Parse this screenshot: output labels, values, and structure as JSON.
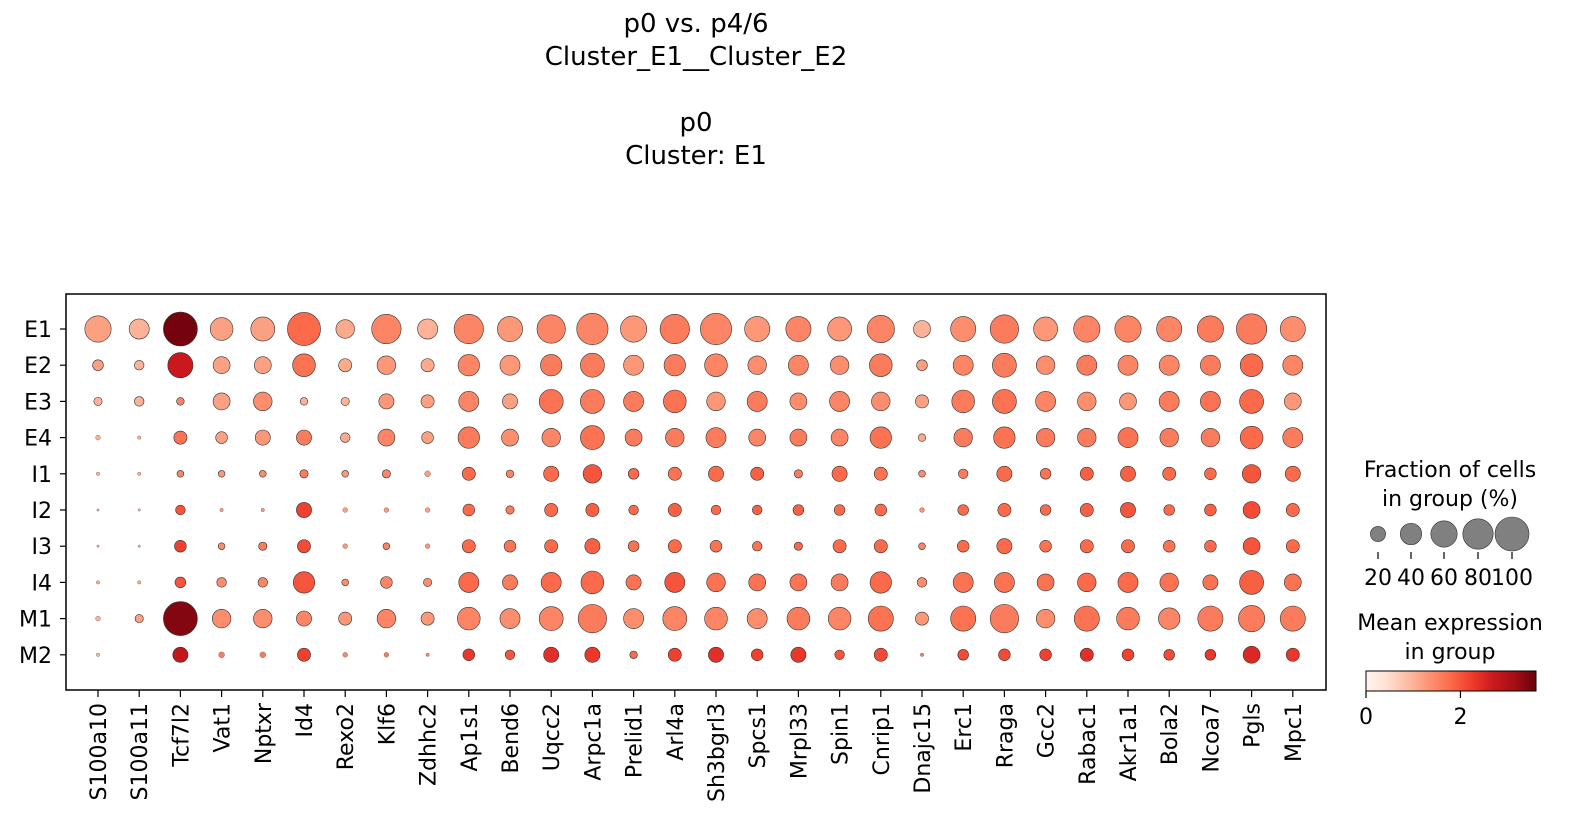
{
  "titles": {
    "line1": "p0 vs. p4/6",
    "line2": "Cluster_E1__Cluster_E2",
    "line3": "p0",
    "line4": "Cluster: E1"
  },
  "chart_data": {
    "type": "dotplot",
    "genes": [
      "S100a10",
      "S100a11",
      "Tcf7l2",
      "Vat1",
      "Nptxr",
      "Id4",
      "Rexo2",
      "Klf6",
      "Zdhhc2",
      "Ap1s1",
      "Bend6",
      "Uqcc2",
      "Arpc1a",
      "Prelid1",
      "Arl4a",
      "Sh3bgrl3",
      "Spcs1",
      "Mrpl33",
      "Spin1",
      "Cnrip1",
      "Dnajc15",
      "Erc1",
      "Rraga",
      "Gcc2",
      "Rabac1",
      "Akr1a1",
      "Bola2",
      "Ncoa7",
      "Pgls",
      "Mpc1"
    ],
    "groups": [
      "E1",
      "E2",
      "E3",
      "E4",
      "I1",
      "I2",
      "I3",
      "I4",
      "M1",
      "M2"
    ],
    "fraction_percent": [
      [
        60,
        35,
        100,
        45,
        50,
        95,
        30,
        75,
        35,
        75,
        55,
        70,
        85,
        60,
        75,
        85,
        55,
        55,
        50,
        65,
        25,
        55,
        70,
        50,
        60,
        60,
        55,
        60,
        80,
        55
      ],
      [
        10,
        8,
        55,
        25,
        25,
        45,
        15,
        30,
        15,
        40,
        35,
        40,
        50,
        35,
        40,
        45,
        30,
        35,
        30,
        45,
        10,
        35,
        50,
        30,
        35,
        35,
        35,
        35,
        45,
        35
      ],
      [
        6,
        8,
        5,
        25,
        30,
        5,
        6,
        20,
        15,
        35,
        20,
        50,
        50,
        35,
        45,
        30,
        35,
        25,
        35,
        30,
        15,
        45,
        50,
        35,
        30,
        25,
        35,
        35,
        50,
        25
      ],
      [
        2,
        1,
        15,
        12,
        20,
        20,
        8,
        25,
        12,
        40,
        25,
        30,
        50,
        25,
        30,
        35,
        25,
        25,
        25,
        40,
        5,
        30,
        40,
        30,
        30,
        35,
        30,
        30,
        45,
        35
      ],
      [
        1,
        1,
        4,
        4,
        4,
        6,
        4,
        6,
        3,
        15,
        5,
        20,
        30,
        10,
        15,
        20,
        15,
        6,
        20,
        15,
        4,
        8,
        20,
        10,
        15,
        20,
        15,
        12,
        30,
        20
      ],
      [
        0.5,
        0.5,
        8,
        1,
        1,
        20,
        2,
        2,
        2,
        12,
        6,
        15,
        15,
        8,
        15,
        8,
        8,
        10,
        10,
        12,
        2,
        10,
        15,
        10,
        15,
        20,
        10,
        12,
        25,
        15
      ],
      [
        0.5,
        0.5,
        12,
        4,
        6,
        15,
        2,
        4,
        2,
        15,
        12,
        15,
        20,
        10,
        15,
        12,
        8,
        6,
        15,
        15,
        4,
        12,
        20,
        12,
        15,
        15,
        12,
        12,
        25,
        15
      ],
      [
        1,
        1,
        10,
        8,
        8,
        40,
        4,
        12,
        6,
        35,
        20,
        35,
        45,
        20,
        35,
        30,
        25,
        25,
        25,
        40,
        8,
        35,
        35,
        25,
        30,
        35,
        30,
        20,
        50,
        25
      ],
      [
        2,
        6,
        100,
        30,
        30,
        20,
        15,
        30,
        15,
        45,
        35,
        50,
        70,
        35,
        50,
        45,
        35,
        45,
        45,
        55,
        15,
        55,
        70,
        30,
        55,
        45,
        40,
        55,
        60,
        55
      ],
      [
        1,
        0,
        20,
        3,
        3,
        15,
        2,
        2,
        1,
        12,
        8,
        20,
        20,
        5,
        15,
        20,
        12,
        20,
        8,
        15,
        1,
        10,
        12,
        12,
        15,
        12,
        10,
        10,
        25,
        15
      ]
    ],
    "mean_expression": [
      [
        1.2,
        1.0,
        3.5,
        1.2,
        1.2,
        1.8,
        1.1,
        1.5,
        1.0,
        1.5,
        1.3,
        1.5,
        1.5,
        1.3,
        1.6,
        1.5,
        1.3,
        1.5,
        1.3,
        1.5,
        1.0,
        1.4,
        1.6,
        1.3,
        1.5,
        1.5,
        1.5,
        1.6,
        1.6,
        1.4
      ],
      [
        1.2,
        1.0,
        2.7,
        1.2,
        1.2,
        1.7,
        1.1,
        1.3,
        1.1,
        1.5,
        1.3,
        1.6,
        1.6,
        1.3,
        1.6,
        1.5,
        1.4,
        1.5,
        1.4,
        1.6,
        1.2,
        1.5,
        1.6,
        1.4,
        1.6,
        1.5,
        1.5,
        1.6,
        1.8,
        1.5
      ],
      [
        1.0,
        1.0,
        1.5,
        1.2,
        1.4,
        1.0,
        1.0,
        1.3,
        1.2,
        1.5,
        1.2,
        1.7,
        1.6,
        1.6,
        1.7,
        1.3,
        1.6,
        1.4,
        1.5,
        1.4,
        1.2,
        1.6,
        1.7,
        1.5,
        1.4,
        1.3,
        1.6,
        1.7,
        1.8,
        1.3
      ],
      [
        1.0,
        1.0,
        1.7,
        1.2,
        1.3,
        1.6,
        1.1,
        1.5,
        1.2,
        1.6,
        1.4,
        1.5,
        1.7,
        1.6,
        1.6,
        1.6,
        1.5,
        1.6,
        1.5,
        1.7,
        1.1,
        1.6,
        1.7,
        1.6,
        1.6,
        1.7,
        1.6,
        1.6,
        1.8,
        1.6
      ],
      [
        1.0,
        1.0,
        1.5,
        1.3,
        1.4,
        1.6,
        1.3,
        1.5,
        1.2,
        1.8,
        1.5,
        1.8,
        2.0,
        1.8,
        1.7,
        1.8,
        1.9,
        1.6,
        1.8,
        1.7,
        1.4,
        1.6,
        1.8,
        1.7,
        1.9,
        1.9,
        1.8,
        1.8,
        2.0,
        1.8
      ],
      [
        1.0,
        1.0,
        2.0,
        1.2,
        1.3,
        2.2,
        1.2,
        1.3,
        1.2,
        1.8,
        1.6,
        1.8,
        1.9,
        1.8,
        1.9,
        1.8,
        1.9,
        1.9,
        1.8,
        1.8,
        1.4,
        1.8,
        1.8,
        1.8,
        1.9,
        2.0,
        1.8,
        1.9,
        2.1,
        1.8
      ],
      [
        1.0,
        1.0,
        2.2,
        1.4,
        1.6,
        2.1,
        1.3,
        1.5,
        1.3,
        1.8,
        1.7,
        1.8,
        1.9,
        1.7,
        1.8,
        1.7,
        1.7,
        1.8,
        1.8,
        1.8,
        1.5,
        1.8,
        1.8,
        1.7,
        1.8,
        1.8,
        1.7,
        1.8,
        2.0,
        1.8
      ],
      [
        1.0,
        1.0,
        2.0,
        1.4,
        1.5,
        2.0,
        1.4,
        1.5,
        1.4,
        1.8,
        1.6,
        1.8,
        1.8,
        1.7,
        2.0,
        1.7,
        1.7,
        1.7,
        1.6,
        1.8,
        1.4,
        1.7,
        1.7,
        1.7,
        1.8,
        1.8,
        1.7,
        1.7,
        1.9,
        1.7
      ],
      [
        1.0,
        1.2,
        3.4,
        1.4,
        1.4,
        1.5,
        1.3,
        1.5,
        1.3,
        1.5,
        1.4,
        1.5,
        1.6,
        1.4,
        1.5,
        1.5,
        1.4,
        1.6,
        1.5,
        1.7,
        1.3,
        1.7,
        1.6,
        1.4,
        1.7,
        1.6,
        1.5,
        1.6,
        1.6,
        1.6
      ],
      [
        1.0,
        0,
        2.8,
        1.6,
        1.6,
        2.2,
        1.5,
        1.6,
        1.5,
        2.3,
        2.0,
        2.4,
        2.3,
        1.8,
        2.2,
        2.4,
        2.2,
        2.3,
        2.0,
        2.1,
        1.6,
        2.1,
        2.1,
        2.2,
        2.4,
        2.2,
        2.1,
        2.3,
        2.5,
        2.3
      ]
    ],
    "size_legend": {
      "title_line1": "Fraction of cells",
      "title_line2": "in group (%)",
      "values": [
        20,
        40,
        60,
        80,
        100
      ],
      "tick_labels": [
        "20",
        "40",
        "60",
        "80",
        "100"
      ]
    },
    "color_legend": {
      "title_line1": "Mean expression",
      "title_line2": "in group",
      "colormap": "Reds",
      "range": [
        0,
        3.6
      ],
      "tick_values": [
        0,
        2
      ],
      "tick_labels": [
        "0",
        "2"
      ]
    }
  }
}
